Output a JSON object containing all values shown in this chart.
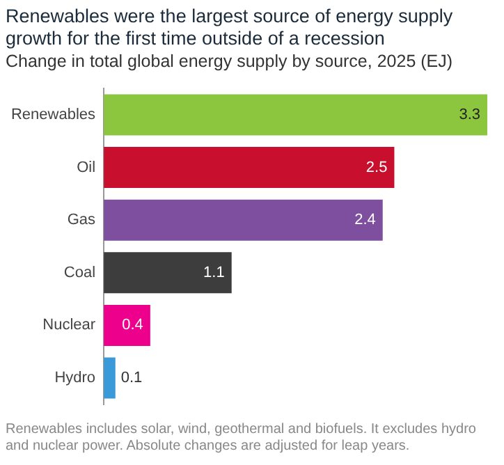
{
  "chart_data": {
    "type": "bar",
    "orientation": "horizontal",
    "title": "Renewables were the largest source of energy supply growth for the first time outside of a recession",
    "subtitle": "Change in total global energy supply by source, 2025 (EJ)",
    "categories": [
      "Renewables",
      "Oil",
      "Gas",
      "Coal",
      "Nuclear",
      "Hydro"
    ],
    "values": [
      3.3,
      2.5,
      2.4,
      1.1,
      0.4,
      0.1
    ],
    "colors": [
      "#8cc63f",
      "#c8102e",
      "#7d4f9e",
      "#3d3d3d",
      "#ec008c",
      "#3a9ad9"
    ],
    "data_labels": true,
    "annotations": [
      "Renewables includes solar, wind, geothermal and biofuels. It excludes hydro and nuclear power. Absolute changes are adjusted for leap years."
    ]
  }
}
